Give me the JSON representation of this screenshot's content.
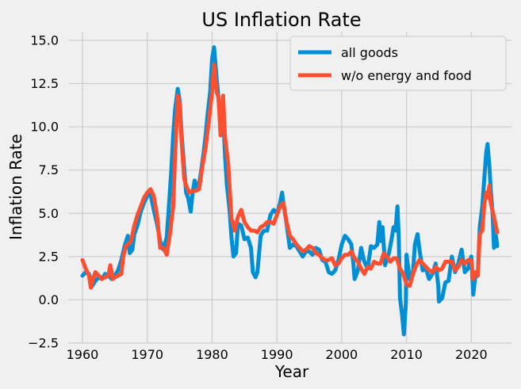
{
  "chart_data": {
    "type": "line",
    "title": "US Inflation Rate",
    "xlabel": "Year",
    "ylabel": "Inflation Rate",
    "xlim": [
      1957.8,
      2026.2
    ],
    "ylim": [
      -2.5,
      15.5
    ],
    "xticks": [
      1960,
      1970,
      1980,
      1990,
      2000,
      2010,
      2020
    ],
    "yticks": [
      -2.5,
      0.0,
      2.5,
      5.0,
      7.5,
      10.0,
      12.5,
      15.0
    ],
    "ytick_labels": [
      "−2.5",
      "0.0",
      "2.5",
      "5.0",
      "7.5",
      "10.0",
      "12.5",
      "15.0"
    ],
    "grid": true,
    "legend_position": "top-right",
    "series": [
      {
        "name": "all goods",
        "color": "#008fd5",
        "points": [
          [
            1960.0,
            1.4
          ],
          [
            1960.5,
            1.6
          ],
          [
            1961.0,
            1.5
          ],
          [
            1961.5,
            0.8
          ],
          [
            1962.0,
            1.1
          ],
          [
            1962.5,
            1.3
          ],
          [
            1963.0,
            1.2
          ],
          [
            1963.5,
            1.5
          ],
          [
            1964.0,
            1.4
          ],
          [
            1964.5,
            1.2
          ],
          [
            1965.0,
            1.4
          ],
          [
            1965.5,
            1.7
          ],
          [
            1966.0,
            2.3
          ],
          [
            1966.5,
            3.1
          ],
          [
            1967.0,
            3.7
          ],
          [
            1967.3,
            2.7
          ],
          [
            1967.7,
            2.9
          ],
          [
            1968.0,
            3.8
          ],
          [
            1968.5,
            4.3
          ],
          [
            1969.0,
            5.1
          ],
          [
            1969.5,
            5.6
          ],
          [
            1970.0,
            6.0
          ],
          [
            1970.5,
            6.1
          ],
          [
            1971.0,
            5.2
          ],
          [
            1971.5,
            4.4
          ],
          [
            1972.0,
            3.4
          ],
          [
            1972.5,
            2.9
          ],
          [
            1973.0,
            3.6
          ],
          [
            1973.3,
            5.2
          ],
          [
            1973.7,
            7.4
          ],
          [
            1974.0,
            9.5
          ],
          [
            1974.3,
            11.0
          ],
          [
            1974.7,
            12.2
          ],
          [
            1975.0,
            11.5
          ],
          [
            1975.3,
            9.6
          ],
          [
            1975.7,
            7.6
          ],
          [
            1976.0,
            6.2
          ],
          [
            1976.3,
            5.9
          ],
          [
            1976.7,
            5.1
          ],
          [
            1977.0,
            6.2
          ],
          [
            1977.3,
            6.9
          ],
          [
            1977.7,
            6.5
          ],
          [
            1978.0,
            6.7
          ],
          [
            1978.3,
            7.4
          ],
          [
            1978.7,
            8.5
          ],
          [
            1979.0,
            9.5
          ],
          [
            1979.3,
            10.7
          ],
          [
            1979.7,
            12.0
          ],
          [
            1980.0,
            13.9
          ],
          [
            1980.3,
            14.6
          ],
          [
            1980.7,
            12.8
          ],
          [
            1981.0,
            11.6
          ],
          [
            1981.3,
            10.1
          ],
          [
            1981.7,
            10.9
          ],
          [
            1982.0,
            8.3
          ],
          [
            1982.3,
            6.6
          ],
          [
            1982.7,
            5.2
          ],
          [
            1983.0,
            3.6
          ],
          [
            1983.3,
            2.5
          ],
          [
            1983.7,
            2.7
          ],
          [
            1984.0,
            4.4
          ],
          [
            1984.5,
            4.3
          ],
          [
            1985.0,
            3.5
          ],
          [
            1985.5,
            3.6
          ],
          [
            1986.0,
            3.0
          ],
          [
            1986.3,
            1.6
          ],
          [
            1986.7,
            1.3
          ],
          [
            1987.0,
            1.6
          ],
          [
            1987.5,
            3.7
          ],
          [
            1988.0,
            4.0
          ],
          [
            1988.5,
            4.0
          ],
          [
            1989.0,
            4.9
          ],
          [
            1989.5,
            5.2
          ],
          [
            1990.0,
            5.0
          ],
          [
            1990.5,
            5.6
          ],
          [
            1990.8,
            6.2
          ],
          [
            1991.0,
            5.6
          ],
          [
            1991.5,
            4.4
          ],
          [
            1992.0,
            3.0
          ],
          [
            1992.5,
            3.2
          ],
          [
            1993.0,
            3.1
          ],
          [
            1993.5,
            2.8
          ],
          [
            1994.0,
            2.5
          ],
          [
            1994.5,
            2.8
          ],
          [
            1995.0,
            2.8
          ],
          [
            1995.5,
            2.6
          ],
          [
            1996.0,
            3.0
          ],
          [
            1996.5,
            2.9
          ],
          [
            1997.0,
            2.3
          ],
          [
            1997.5,
            2.2
          ],
          [
            1998.0,
            1.6
          ],
          [
            1998.5,
            1.5
          ],
          [
            1999.0,
            1.7
          ],
          [
            1999.5,
            2.3
          ],
          [
            2000.0,
            3.2
          ],
          [
            2000.5,
            3.7
          ],
          [
            2001.0,
            3.5
          ],
          [
            2001.5,
            3.2
          ],
          [
            2001.8,
            2.1
          ],
          [
            2002.0,
            1.2
          ],
          [
            2002.5,
            1.7
          ],
          [
            2003.0,
            3.0
          ],
          [
            2003.5,
            2.2
          ],
          [
            2004.0,
            1.8
          ],
          [
            2004.5,
            3.1
          ],
          [
            2005.0,
            3.0
          ],
          [
            2005.5,
            3.2
          ],
          [
            2005.8,
            4.5
          ],
          [
            2006.0,
            3.4
          ],
          [
            2006.3,
            4.2
          ],
          [
            2006.7,
            2.0
          ],
          [
            2007.0,
            2.4
          ],
          [
            2007.3,
            2.7
          ],
          [
            2007.7,
            3.5
          ],
          [
            2008.0,
            4.2
          ],
          [
            2008.3,
            4.0
          ],
          [
            2008.6,
            5.4
          ],
          [
            2008.8,
            3.7
          ],
          [
            2009.0,
            0.1
          ],
          [
            2009.3,
            -0.8
          ],
          [
            2009.6,
            -2.0
          ],
          [
            2009.9,
            -0.2
          ],
          [
            2010.0,
            2.6
          ],
          [
            2010.5,
            1.2
          ],
          [
            2011.0,
            1.6
          ],
          [
            2011.3,
            3.2
          ],
          [
            2011.7,
            3.8
          ],
          [
            2012.0,
            2.9
          ],
          [
            2012.5,
            1.7
          ],
          [
            2013.0,
            1.8
          ],
          [
            2013.5,
            1.2
          ],
          [
            2014.0,
            1.5
          ],
          [
            2014.5,
            2.1
          ],
          [
            2014.9,
            0.8
          ],
          [
            2015.0,
            -0.1
          ],
          [
            2015.5,
            0.1
          ],
          [
            2016.0,
            1.0
          ],
          [
            2016.5,
            1.1
          ],
          [
            2017.0,
            2.5
          ],
          [
            2017.5,
            1.6
          ],
          [
            2018.0,
            2.1
          ],
          [
            2018.5,
            2.9
          ],
          [
            2019.0,
            1.6
          ],
          [
            2019.5,
            1.8
          ],
          [
            2020.0,
            2.5
          ],
          [
            2020.3,
            0.3
          ],
          [
            2020.6,
            1.3
          ],
          [
            2021.0,
            1.4
          ],
          [
            2021.3,
            4.2
          ],
          [
            2021.7,
            5.4
          ],
          [
            2022.0,
            7.0
          ],
          [
            2022.3,
            8.5
          ],
          [
            2022.5,
            9.0
          ],
          [
            2022.8,
            7.7
          ],
          [
            2023.0,
            6.4
          ],
          [
            2023.3,
            4.9
          ],
          [
            2023.5,
            3.0
          ],
          [
            2023.8,
            3.7
          ],
          [
            2024.0,
            3.1
          ]
        ]
      },
      {
        "name": "w/o energy and food",
        "color": "#fc4f30",
        "points": [
          [
            1960.0,
            2.3
          ],
          [
            1960.5,
            1.8
          ],
          [
            1961.0,
            1.4
          ],
          [
            1961.3,
            0.7
          ],
          [
            1961.7,
            1.3
          ],
          [
            1962.0,
            1.6
          ],
          [
            1962.5,
            1.4
          ],
          [
            1963.0,
            1.2
          ],
          [
            1963.5,
            1.3
          ],
          [
            1964.0,
            1.4
          ],
          [
            1964.3,
            2.0
          ],
          [
            1964.7,
            1.2
          ],
          [
            1965.0,
            1.3
          ],
          [
            1965.5,
            1.4
          ],
          [
            1966.0,
            1.5
          ],
          [
            1966.3,
            2.5
          ],
          [
            1966.7,
            3.1
          ],
          [
            1967.0,
            3.2
          ],
          [
            1967.5,
            3.4
          ],
          [
            1968.0,
            4.3
          ],
          [
            1968.5,
            4.9
          ],
          [
            1969.0,
            5.4
          ],
          [
            1969.5,
            5.9
          ],
          [
            1970.0,
            6.2
          ],
          [
            1970.5,
            6.4
          ],
          [
            1971.0,
            6.0
          ],
          [
            1971.5,
            4.9
          ],
          [
            1972.0,
            3.0
          ],
          [
            1972.5,
            3.0
          ],
          [
            1973.0,
            2.6
          ],
          [
            1973.5,
            3.8
          ],
          [
            1974.0,
            5.4
          ],
          [
            1974.3,
            8.3
          ],
          [
            1974.7,
            11.8
          ],
          [
            1975.0,
            11.3
          ],
          [
            1975.3,
            9.2
          ],
          [
            1975.7,
            7.0
          ],
          [
            1976.0,
            6.6
          ],
          [
            1976.5,
            6.2
          ],
          [
            1977.0,
            6.3
          ],
          [
            1977.5,
            6.3
          ],
          [
            1978.0,
            6.4
          ],
          [
            1978.5,
            7.7
          ],
          [
            1979.0,
            8.8
          ],
          [
            1979.5,
            10.3
          ],
          [
            1980.0,
            12.0
          ],
          [
            1980.3,
            13.6
          ],
          [
            1980.7,
            12.0
          ],
          [
            1981.0,
            11.7
          ],
          [
            1981.3,
            9.5
          ],
          [
            1981.7,
            11.8
          ],
          [
            1982.0,
            9.4
          ],
          [
            1982.5,
            7.8
          ],
          [
            1983.0,
            4.7
          ],
          [
            1983.5,
            4.0
          ],
          [
            1984.0,
            4.8
          ],
          [
            1984.5,
            5.2
          ],
          [
            1985.0,
            4.5
          ],
          [
            1985.5,
            4.2
          ],
          [
            1986.0,
            4.0
          ],
          [
            1986.5,
            4.0
          ],
          [
            1987.0,
            3.9
          ],
          [
            1987.5,
            4.2
          ],
          [
            1988.0,
            4.3
          ],
          [
            1988.5,
            4.5
          ],
          [
            1989.0,
            4.5
          ],
          [
            1989.5,
            4.4
          ],
          [
            1990.0,
            4.9
          ],
          [
            1990.5,
            5.4
          ],
          [
            1991.0,
            5.6
          ],
          [
            1991.5,
            4.5
          ],
          [
            1992.0,
            3.7
          ],
          [
            1992.5,
            3.5
          ],
          [
            1993.0,
            3.2
          ],
          [
            1993.5,
            3.0
          ],
          [
            1994.0,
            2.8
          ],
          [
            1994.5,
            2.9
          ],
          [
            1995.0,
            3.1
          ],
          [
            1995.5,
            3.0
          ],
          [
            1996.0,
            2.7
          ],
          [
            1996.5,
            2.6
          ],
          [
            1997.0,
            2.4
          ],
          [
            1997.5,
            2.3
          ],
          [
            1998.0,
            2.3
          ],
          [
            1998.5,
            2.4
          ],
          [
            1999.0,
            2.0
          ],
          [
            1999.5,
            2.1
          ],
          [
            2000.0,
            2.4
          ],
          [
            2000.5,
            2.6
          ],
          [
            2001.0,
            2.6
          ],
          [
            2001.5,
            2.8
          ],
          [
            2002.0,
            2.4
          ],
          [
            2002.5,
            2.2
          ],
          [
            2003.0,
            1.8
          ],
          [
            2003.5,
            1.5
          ],
          [
            2004.0,
            1.9
          ],
          [
            2004.5,
            1.8
          ],
          [
            2005.0,
            2.2
          ],
          [
            2005.5,
            2.1
          ],
          [
            2006.0,
            2.1
          ],
          [
            2006.5,
            2.7
          ],
          [
            2007.0,
            2.5
          ],
          [
            2007.5,
            2.2
          ],
          [
            2008.0,
            2.4
          ],
          [
            2008.5,
            2.4
          ],
          [
            2009.0,
            1.8
          ],
          [
            2009.5,
            1.5
          ],
          [
            2010.0,
            0.9
          ],
          [
            2010.5,
            0.8
          ],
          [
            2011.0,
            1.5
          ],
          [
            2011.5,
            2.0
          ],
          [
            2012.0,
            2.3
          ],
          [
            2012.5,
            2.1
          ],
          [
            2013.0,
            1.9
          ],
          [
            2013.5,
            1.7
          ],
          [
            2014.0,
            1.6
          ],
          [
            2014.5,
            1.9
          ],
          [
            2015.0,
            1.7
          ],
          [
            2015.5,
            1.8
          ],
          [
            2016.0,
            2.2
          ],
          [
            2016.5,
            2.2
          ],
          [
            2017.0,
            2.2
          ],
          [
            2017.5,
            1.7
          ],
          [
            2018.0,
            1.9
          ],
          [
            2018.5,
            2.3
          ],
          [
            2019.0,
            2.1
          ],
          [
            2019.5,
            2.3
          ],
          [
            2020.0,
            2.3
          ],
          [
            2020.3,
            1.2
          ],
          [
            2020.7,
            1.6
          ],
          [
            2021.0,
            1.4
          ],
          [
            2021.3,
            3.8
          ],
          [
            2021.7,
            4.0
          ],
          [
            2022.0,
            5.5
          ],
          [
            2022.3,
            6.2
          ],
          [
            2022.5,
            5.9
          ],
          [
            2022.8,
            6.6
          ],
          [
            2023.0,
            5.6
          ],
          [
            2023.5,
            4.8
          ],
          [
            2024.0,
            3.9
          ]
        ]
      }
    ]
  }
}
